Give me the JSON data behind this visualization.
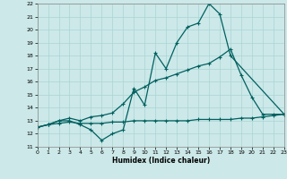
{
  "xlabel": "Humidex (Indice chaleur)",
  "bg_color": "#cce8e8",
  "line_color": "#006060",
  "grid_color": "#aad4d4",
  "xmin": 0,
  "xmax": 23,
  "ymin": 11,
  "ymax": 22,
  "line1_x": [
    0,
    1,
    2,
    3,
    4,
    5,
    6,
    7,
    8,
    9,
    10,
    11,
    12,
    13,
    14,
    15,
    16,
    17,
    18,
    23
  ],
  "line1_y": [
    12.5,
    12.7,
    13.0,
    13.0,
    12.7,
    12.3,
    11.5,
    12.0,
    12.3,
    15.5,
    14.2,
    18.2,
    17.0,
    19.0,
    20.2,
    20.5,
    22.0,
    21.2,
    18.0,
    13.5
  ],
  "line2_x": [
    0,
    1,
    2,
    3,
    4,
    5,
    6,
    7,
    8,
    9,
    10,
    11,
    12,
    13,
    14,
    15,
    16,
    17,
    18,
    19,
    20,
    21,
    22,
    23
  ],
  "line2_y": [
    12.5,
    12.7,
    13.0,
    13.2,
    13.0,
    13.3,
    13.4,
    13.6,
    14.3,
    15.2,
    15.6,
    16.1,
    16.3,
    16.6,
    16.9,
    17.2,
    17.4,
    17.9,
    18.5,
    16.5,
    14.8,
    13.5,
    13.5,
    13.5
  ],
  "line3_x": [
    0,
    1,
    2,
    3,
    4,
    5,
    6,
    7,
    8,
    9,
    10,
    11,
    12,
    13,
    14,
    15,
    16,
    17,
    18,
    19,
    20,
    21,
    22,
    23
  ],
  "line3_y": [
    12.5,
    12.7,
    12.8,
    12.9,
    12.8,
    12.8,
    12.8,
    12.9,
    12.9,
    13.0,
    13.0,
    13.0,
    13.0,
    13.0,
    13.0,
    13.1,
    13.1,
    13.1,
    13.1,
    13.2,
    13.2,
    13.3,
    13.4,
    13.5
  ]
}
